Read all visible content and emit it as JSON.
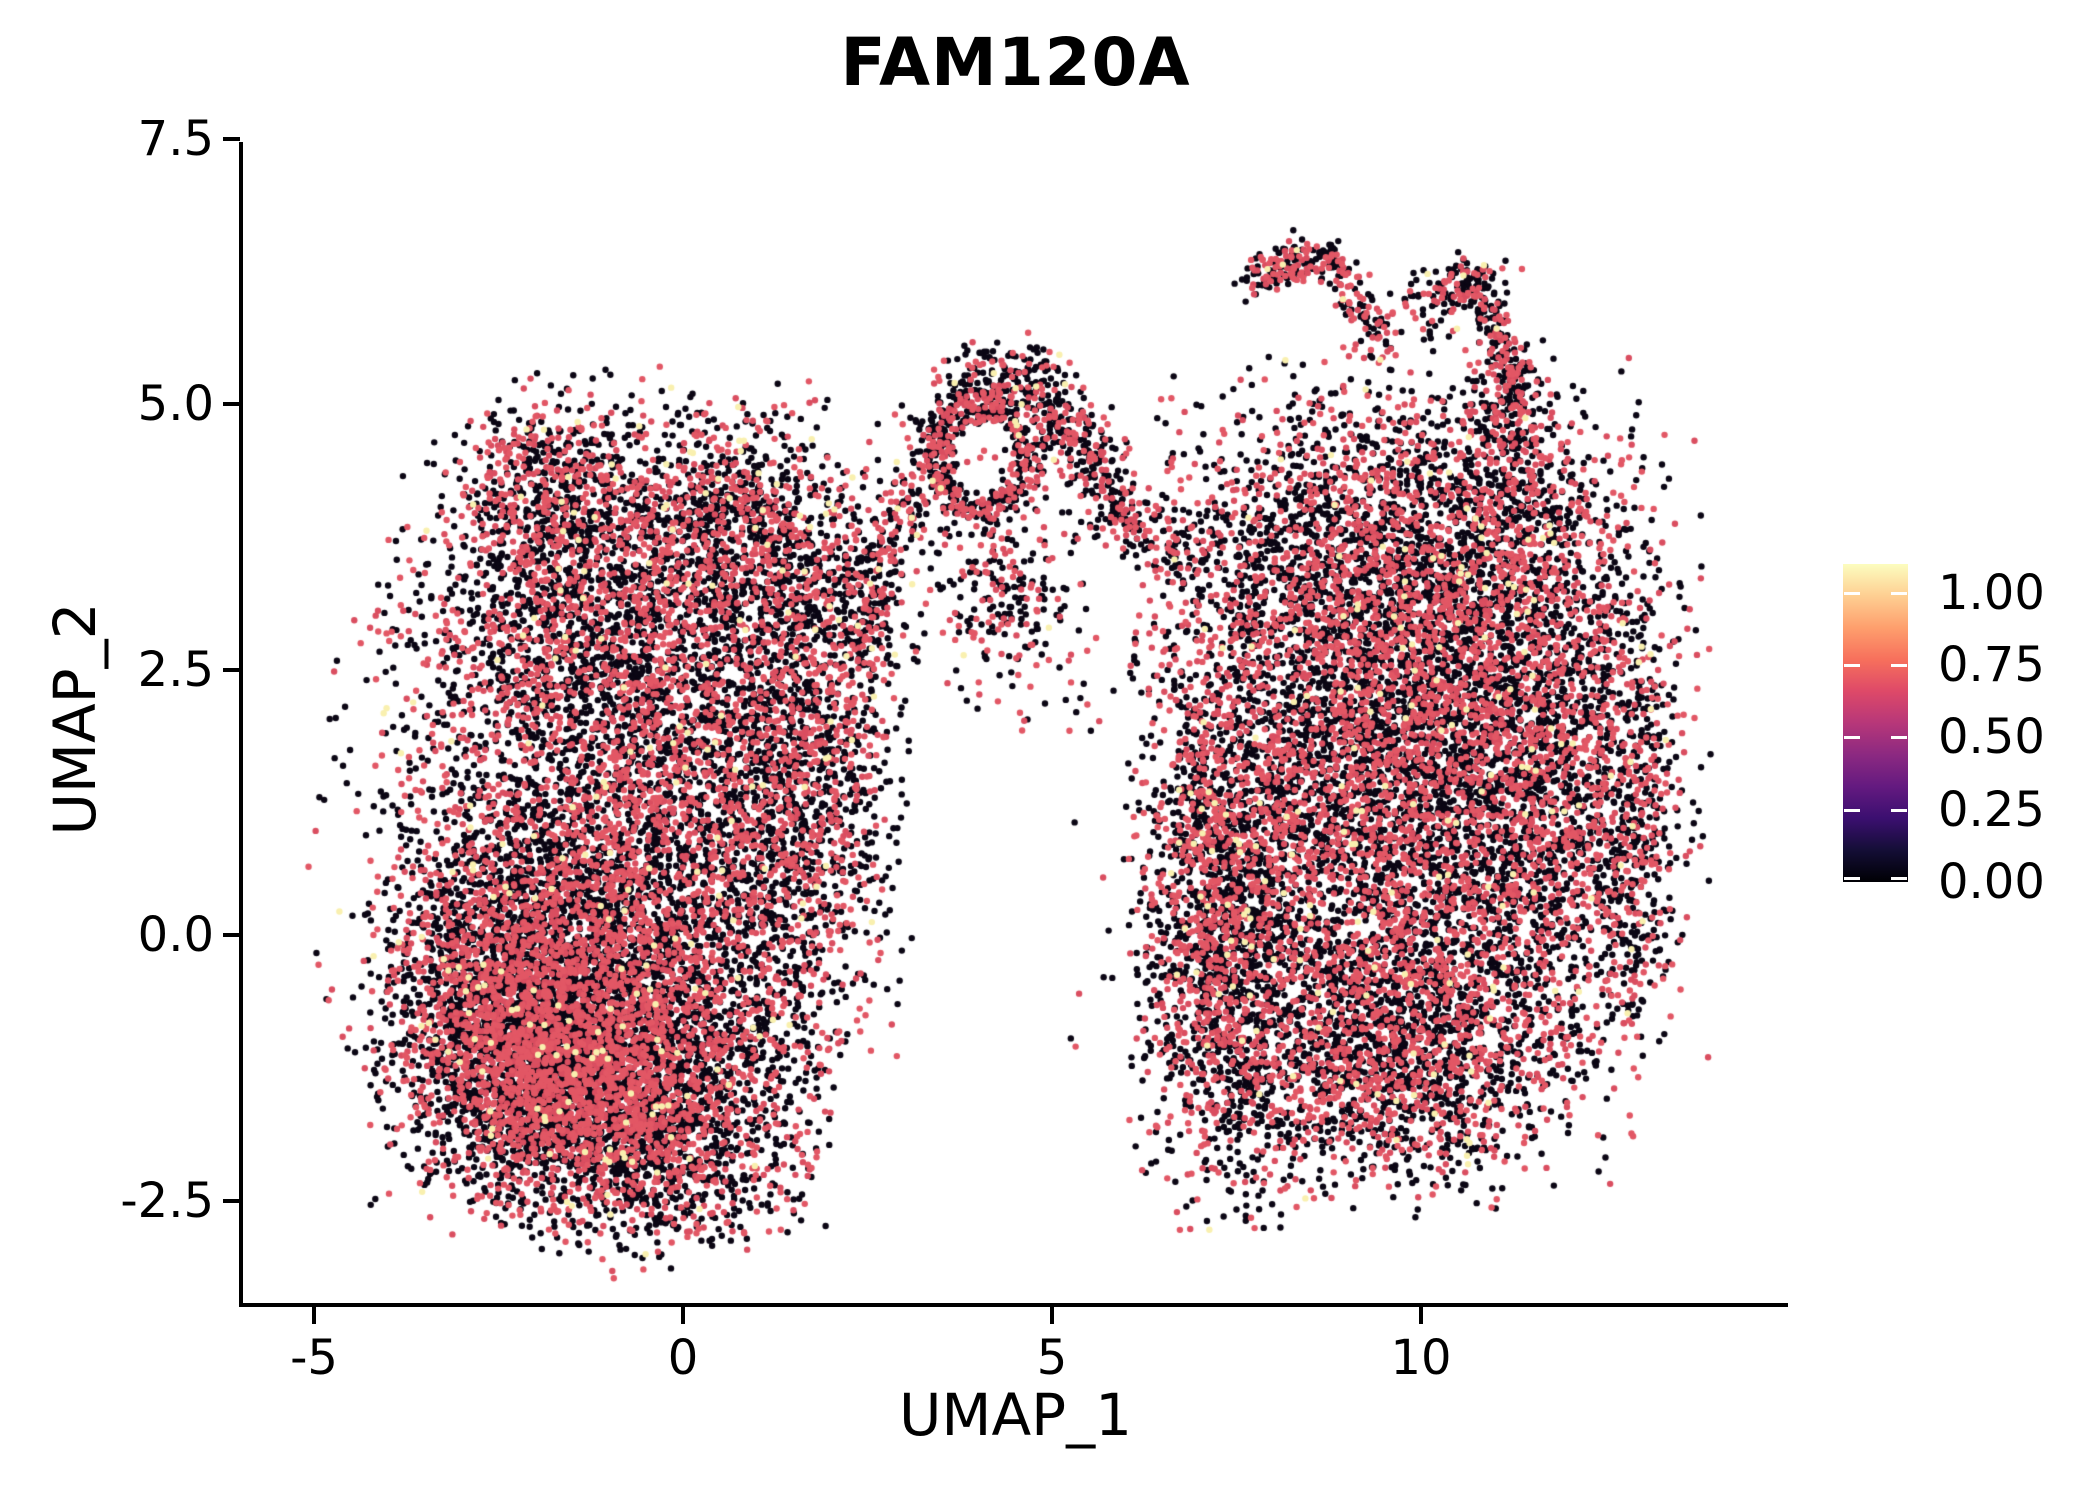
{
  "title": "FAM120A",
  "axes": {
    "x": {
      "label": "UMAP_1",
      "tick_labels": [
        "-5",
        "0",
        "5",
        "10"
      ],
      "tick_values": [
        -5,
        0,
        5,
        10
      ],
      "range": [
        -5.96,
        14.97
      ]
    },
    "y": {
      "label": "UMAP_2",
      "tick_labels": [
        "7.5",
        "5.0",
        "2.5",
        "0.0",
        "-2.5"
      ],
      "tick_values": [
        7.5,
        5.0,
        2.5,
        0.0,
        -2.5
      ],
      "range": [
        -3.48,
        7.47
      ]
    }
  },
  "legend": {
    "tick_labels": [
      "1.00",
      "0.75",
      "0.50",
      "0.25",
      "0.00"
    ],
    "tick_values": [
      1.0,
      0.75,
      0.5,
      0.25,
      0.0
    ],
    "value_max": 1.1,
    "colormap_name": "magma",
    "colormap_stops": [
      "#000004",
      "#140e36",
      "#3b0f70",
      "#641a80",
      "#8c2981",
      "#b73779",
      "#de4968",
      "#f7705c",
      "#fe9f6d",
      "#fecf92",
      "#fcfdbf"
    ]
  },
  "chart_data": {
    "type": "scatter",
    "title": "FAM120A",
    "xlabel": "UMAP_1",
    "ylabel": "UMAP_2",
    "xlim": [
      -5.96,
      14.97
    ],
    "ylim": [
      -3.48,
      7.47
    ],
    "x_ticks": [
      -5,
      0,
      5,
      10
    ],
    "y_ticks": [
      7.5,
      5.0,
      2.5,
      0.0,
      -2.5
    ],
    "grid": false,
    "legend_position": "right",
    "point_radius_px": 3.2,
    "seed": 42,
    "color_mix": [
      {
        "name": "expression-zero-black",
        "color": "#0B0614",
        "weight": 0.6
      },
      {
        "name": "expression-mid-pink",
        "color": "#E25765",
        "weight": 0.22
      },
      {
        "name": "expression-mid-pink2",
        "color": "#DA4E60",
        "weight": 0.165
      },
      {
        "name": "expression-high-yellow",
        "color": "#F9F0AF",
        "weight": 0.015
      }
    ],
    "clusters": [
      {
        "type": "gauss",
        "cx": -1.0,
        "cy": -0.9,
        "sx": 1.35,
        "sy": 0.8,
        "n": 3400
      },
      {
        "type": "gauss",
        "cx": -2.3,
        "cy": -0.5,
        "sx": 0.85,
        "sy": 0.85,
        "n": 2100
      },
      {
        "type": "gauss",
        "cx": -1.6,
        "cy": -1.4,
        "sx": 0.8,
        "sy": 0.5,
        "n": 1100
      },
      {
        "type": "gauss",
        "cx": -0.6,
        "cy": 1.2,
        "sx": 1.5,
        "sy": 0.95,
        "n": 2500
      },
      {
        "type": "gauss",
        "cx": -1.3,
        "cy": 3.0,
        "sx": 1.15,
        "sy": 0.8,
        "n": 1600
      },
      {
        "type": "gauss",
        "cx": -1.7,
        "cy": 4.2,
        "sx": 0.7,
        "sy": 0.5,
        "n": 550
      },
      {
        "type": "gauss",
        "cx": 0.5,
        "cy": 3.9,
        "sx": 0.65,
        "sy": 0.55,
        "n": 700
      },
      {
        "type": "gauss",
        "cx": 1.7,
        "cy": 3.3,
        "sx": 0.55,
        "sy": 0.75,
        "n": 480
      },
      {
        "type": "gauss",
        "cx": 1.4,
        "cy": 1.5,
        "sx": 0.75,
        "sy": 1.2,
        "n": 1200
      },
      {
        "type": "gauss",
        "cx": -0.4,
        "cy": -2.0,
        "sx": 0.95,
        "sy": 0.45,
        "n": 850
      },
      {
        "type": "ellipse",
        "cx": -1.1,
        "cy": 0.8,
        "rx": 4.0,
        "ry": 4.05,
        "n": 520
      },
      {
        "type": "arc",
        "x1": 2.35,
        "y1": 2.5,
        "x2": 3.75,
        "y2": 5.1,
        "bend": 0.3,
        "jitter": 0.2,
        "n": 380
      },
      {
        "type": "ring",
        "cx": 4.05,
        "cy": 4.5,
        "rx": 0.62,
        "ry": 0.5,
        "w": 0.3,
        "n": 420
      },
      {
        "type": "gauss",
        "cx": 4.35,
        "cy": 5.2,
        "sx": 0.38,
        "sy": 0.2,
        "n": 170
      },
      {
        "type": "arc",
        "x1": 4.85,
        "y1": 5.0,
        "x2": 5.95,
        "y2": 3.95,
        "bend": 0.25,
        "jitter": 0.22,
        "n": 300
      },
      {
        "type": "gauss",
        "cx": 4.3,
        "cy": 3.3,
        "sx": 0.6,
        "sy": 0.5,
        "n": 240
      },
      {
        "type": "arc",
        "x1": 5.9,
        "y1": 3.95,
        "x2": 7.0,
        "y2": 3.5,
        "bend": 0.1,
        "jitter": 0.17,
        "n": 110
      },
      {
        "type": "box",
        "x1": 4.3,
        "y1": 1.9,
        "x2": 6.7,
        "y2": 3.2,
        "n": 40
      },
      {
        "type": "box",
        "x1": 4.9,
        "y1": -1.3,
        "x2": 6.8,
        "y2": 1.9,
        "n": 14
      },
      {
        "type": "arc",
        "x1": 7.7,
        "y1": 6.2,
        "x2": 8.9,
        "y2": 6.35,
        "bend": 0.12,
        "jitter": 0.11,
        "n": 180
      },
      {
        "type": "arc",
        "x1": 8.9,
        "y1": 6.35,
        "x2": 9.55,
        "y2": 5.5,
        "bend": -0.15,
        "jitter": 0.13,
        "n": 100
      },
      {
        "type": "box",
        "x1": 9.6,
        "y1": 5.6,
        "x2": 10.5,
        "y2": 6.25,
        "n": 55
      },
      {
        "type": "gauss",
        "cx": 10.7,
        "cy": 6.15,
        "sx": 0.3,
        "sy": 0.12,
        "n": 60
      },
      {
        "type": "arc",
        "x1": 10.55,
        "y1": 6.25,
        "x2": 11.3,
        "y2": 5.0,
        "bend": 0.25,
        "jitter": 0.13,
        "n": 190
      },
      {
        "type": "gauss",
        "cx": 11.2,
        "cy": 4.7,
        "sx": 0.28,
        "sy": 0.4,
        "n": 200
      },
      {
        "type": "gauss",
        "cx": 9.6,
        "cy": 1.5,
        "sx": 1.5,
        "sy": 1.5,
        "n": 5000
      },
      {
        "type": "gauss",
        "cx": 7.35,
        "cy": 0.2,
        "sx": 0.55,
        "sy": 1.25,
        "n": 1600
      },
      {
        "type": "gauss",
        "cx": 9.7,
        "cy": 3.6,
        "sx": 1.45,
        "sy": 0.8,
        "n": 2000
      },
      {
        "type": "gauss",
        "cx": 11.9,
        "cy": 1.8,
        "sx": 0.85,
        "sy": 1.3,
        "n": 1500
      },
      {
        "type": "gauss",
        "cx": 9.4,
        "cy": -1.1,
        "sx": 1.35,
        "sy": 0.65,
        "n": 1700
      },
      {
        "type": "ellipse",
        "cx": 9.8,
        "cy": 1.3,
        "rx": 3.3,
        "ry": 3.6,
        "n": 600
      },
      {
        "type": "gauss",
        "cx": 12.9,
        "cy": 0.7,
        "sx": 0.3,
        "sy": 0.95,
        "n": 260
      }
    ]
  }
}
